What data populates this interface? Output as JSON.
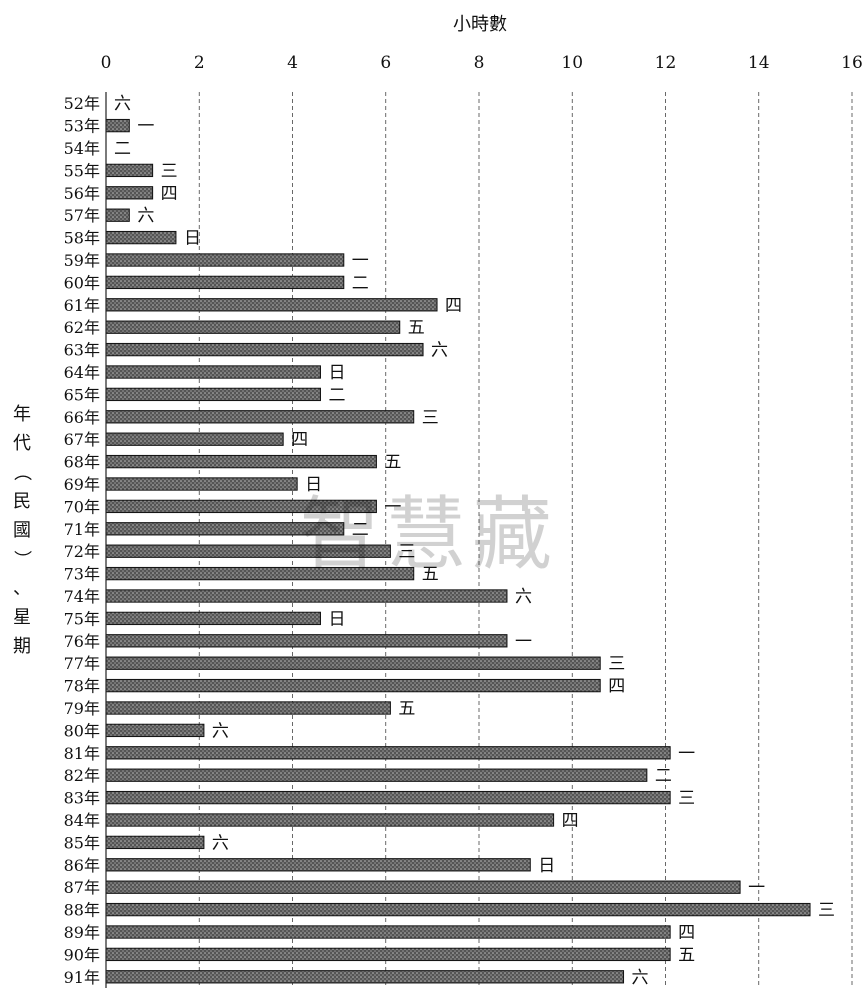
{
  "chart_data": {
    "type": "bar",
    "orientation": "horizontal",
    "xlabel": "小時數",
    "ylabel": "年代（民國）、星期",
    "xlim": [
      0,
      16
    ],
    "xticks": [
      0,
      2,
      4,
      6,
      8,
      10,
      12,
      14,
      16
    ],
    "grid": true,
    "categories": [
      "52年",
      "53年",
      "54年",
      "55年",
      "56年",
      "57年",
      "58年",
      "59年",
      "60年",
      "61年",
      "62年",
      "63年",
      "64年",
      "65年",
      "66年",
      "67年",
      "68年",
      "69年",
      "70年",
      "71年",
      "72年",
      "73年",
      "74年",
      "75年",
      "76年",
      "77年",
      "78年",
      "79年",
      "80年",
      "81年",
      "82年",
      "83年",
      "84年",
      "85年",
      "86年",
      "87年",
      "88年",
      "89年",
      "90年",
      "91年"
    ],
    "values": [
      0,
      0.5,
      0,
      1.0,
      1.0,
      0.5,
      1.5,
      5.1,
      5.1,
      7.1,
      6.3,
      6.8,
      4.6,
      4.6,
      6.6,
      3.8,
      5.8,
      4.1,
      5.8,
      5.1,
      6.1,
      6.6,
      8.6,
      4.6,
      8.6,
      10.6,
      10.6,
      6.1,
      2.1,
      12.1,
      11.6,
      12.1,
      9.6,
      2.1,
      9.1,
      13.6,
      15.1,
      12.1,
      12.1,
      11.1
    ],
    "weekday_labels": [
      "六",
      "一",
      "二",
      "三",
      "四",
      "六",
      "日",
      "一",
      "二",
      "四",
      "五",
      "六",
      "日",
      "二",
      "三",
      "四",
      "五",
      "日",
      "一",
      "二",
      "三",
      "五",
      "六",
      "日",
      "一",
      "三",
      "四",
      "五",
      "六",
      "一",
      "二",
      "三",
      "四",
      "六",
      "日",
      "一",
      "三",
      "四",
      "五",
      "六"
    ]
  },
  "watermark": "智慧藏"
}
